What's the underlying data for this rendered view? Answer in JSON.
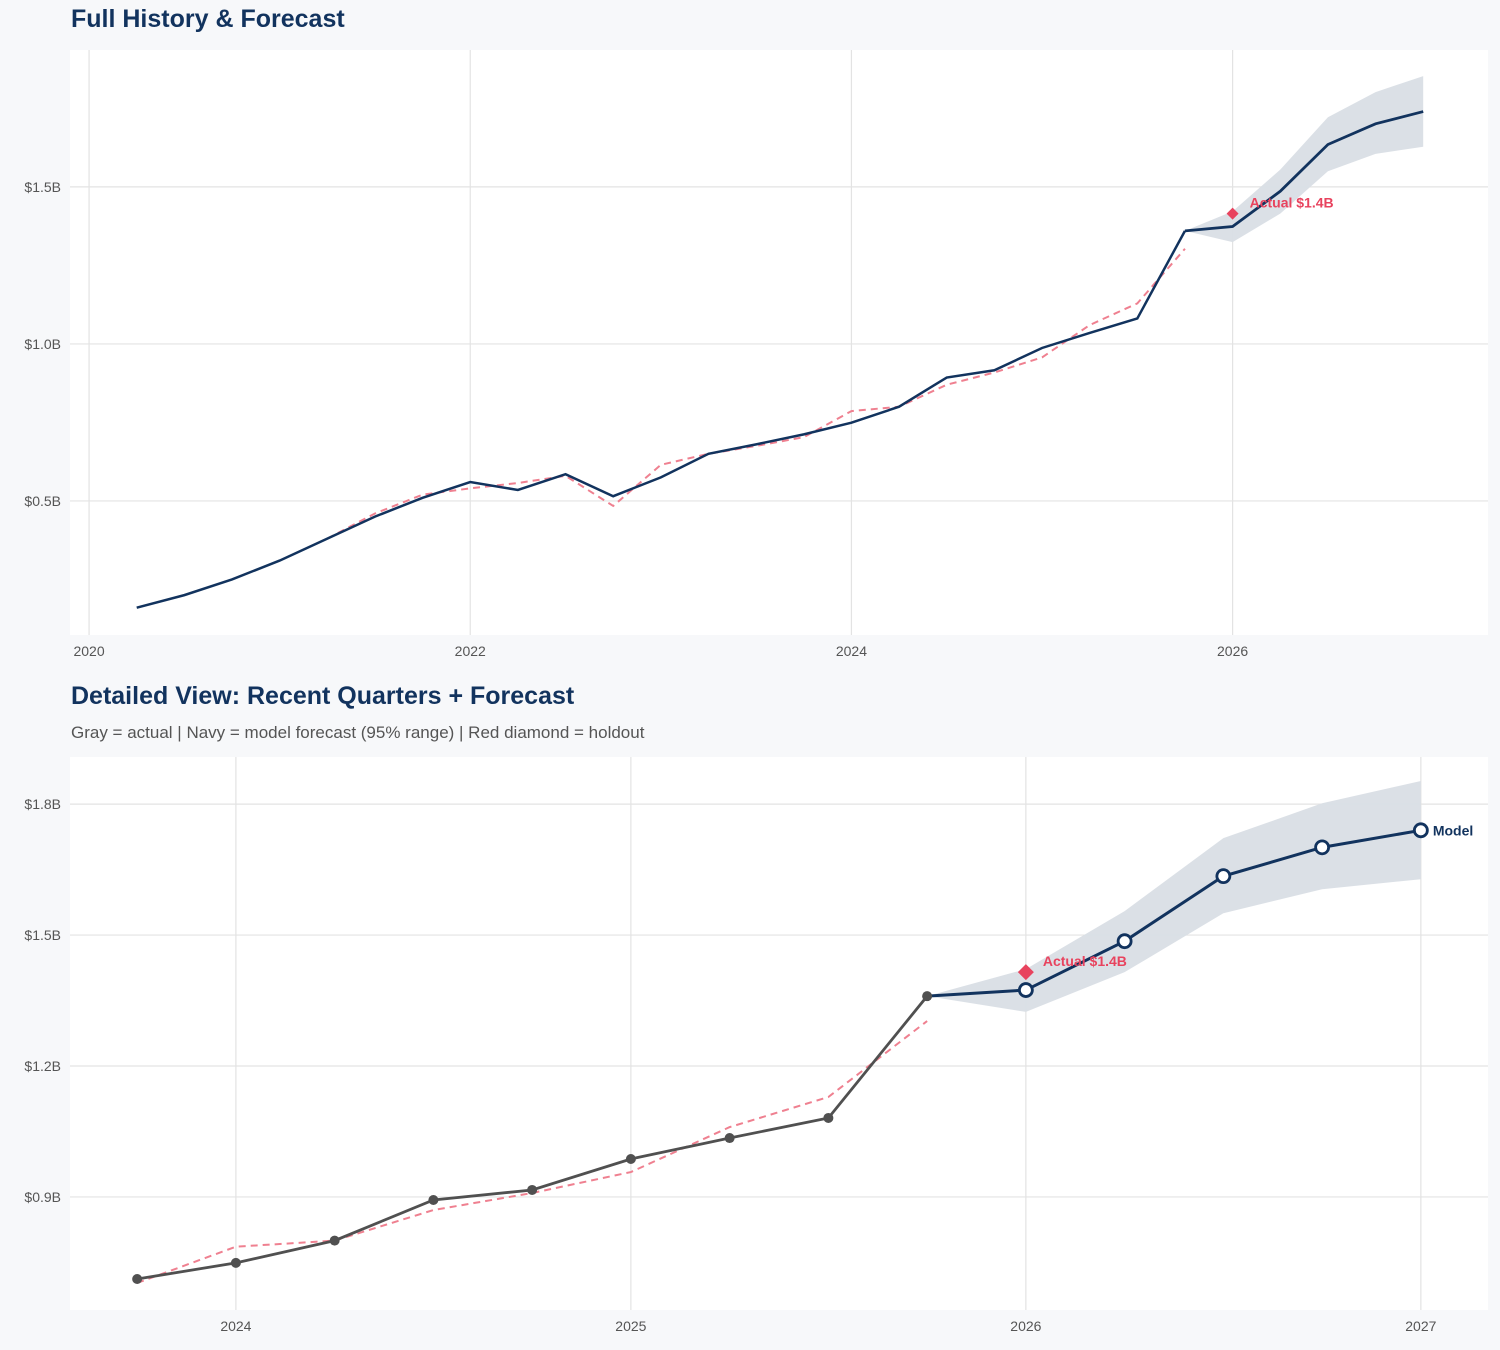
{
  "colors": {
    "navy": "#12335e",
    "gray": "#505050",
    "red": "#e8435e",
    "dashed": "#ef8090",
    "band": "#d9dee5",
    "grid": "#e3e3e3"
  },
  "chart_data": [
    {
      "type": "line",
      "title": "Full History & Forecast",
      "xlim": [
        2019.9,
        2027.34
      ],
      "ylim": [
        0.073,
        1.936
      ],
      "x_ticks": [
        2020,
        2022,
        2024,
        2026
      ],
      "x_tick_labels": [
        "2020",
        "2022",
        "2024",
        "2026"
      ],
      "y_ticks": [
        0.5,
        1.0,
        1.5
      ],
      "y_tick_labels": [
        "$0.5B",
        "$1.0B",
        "$1.5B"
      ],
      "grid": true,
      "actual": {
        "x": [
          2020.25,
          2020.5,
          2020.75,
          2021,
          2021.25,
          2021.5,
          2021.75,
          2022,
          2022.25,
          2022.5,
          2022.75,
          2023,
          2023.25,
          2023.5,
          2023.75,
          2024,
          2024.25,
          2024.5,
          2024.75,
          2025,
          2025.25,
          2025.5,
          2025.75
        ],
        "y": [
          0.16,
          0.2,
          0.25,
          0.31,
          0.38,
          0.45,
          0.51,
          0.56,
          0.535,
          0.585,
          0.515,
          0.575,
          0.65,
          0.68,
          0.712,
          0.749,
          0.8,
          0.893,
          0.916,
          0.987,
          1.035,
          1.081,
          1.36
        ]
      },
      "fitted": {
        "x": [
          2021.25,
          2021.5,
          2021.75,
          2022,
          2022.25,
          2022.5,
          2022.75,
          2023,
          2023.25,
          2023.5,
          2023.75,
          2024,
          2024.25,
          2024.5,
          2024.75,
          2025,
          2025.25,
          2025.5,
          2025.75
        ],
        "y": [
          0.38,
          0.46,
          0.52,
          0.54,
          0.557,
          0.58,
          0.484,
          0.615,
          0.65,
          0.675,
          0.703,
          0.786,
          0.8,
          0.87,
          0.909,
          0.957,
          1.06,
          1.129,
          1.303
        ]
      },
      "forecast": {
        "x": [
          2025.75,
          2026,
          2026.25,
          2026.5,
          2026.75,
          2027
        ],
        "y": [
          1.36,
          1.374,
          1.486,
          1.635,
          1.701,
          1.74
        ],
        "lower": [
          1.36,
          1.324,
          1.415,
          1.55,
          1.605,
          1.628
        ],
        "upper": [
          1.36,
          1.422,
          1.555,
          1.722,
          1.802,
          1.853
        ]
      },
      "holdout": {
        "x": 2026,
        "y": 1.415,
        "label": "Actual $1.4B"
      },
      "show_markers": false
    },
    {
      "type": "line",
      "title": "Detailed View: Recent Quarters + Forecast",
      "subtitle": "Gray = actual  |  Navy = model forecast (95% range)  |  Red diamond = holdout",
      "xlim": [
        2023.58,
        2027.17
      ],
      "ylim": [
        0.641,
        1.908
      ],
      "x_ticks": [
        2024,
        2025,
        2026,
        2027
      ],
      "x_tick_labels": [
        "2024",
        "2025",
        "2026",
        "2027"
      ],
      "y_ticks": [
        0.9,
        1.2,
        1.5,
        1.8
      ],
      "y_tick_labels": [
        "$0.9B",
        "$1.2B",
        "$1.5B",
        "$1.8B"
      ],
      "grid": true,
      "actual": {
        "x": [
          2023.75,
          2024,
          2024.25,
          2024.5,
          2024.75,
          2025,
          2025.25,
          2025.5,
          2025.75
        ],
        "y": [
          0.712,
          0.749,
          0.8,
          0.893,
          0.916,
          0.987,
          1.035,
          1.081,
          1.36
        ]
      },
      "fitted": {
        "x": [
          2023.75,
          2024,
          2024.25,
          2024.5,
          2024.75,
          2025,
          2025.25,
          2025.5,
          2025.75
        ],
        "y": [
          0.703,
          0.786,
          0.8,
          0.87,
          0.909,
          0.957,
          1.06,
          1.129,
          1.303
        ]
      },
      "forecast": {
        "x": [
          2025.75,
          2026,
          2026.25,
          2026.5,
          2026.75,
          2027
        ],
        "y": [
          1.36,
          1.374,
          1.486,
          1.635,
          1.701,
          1.74
        ],
        "lower": [
          1.36,
          1.324,
          1.415,
          1.55,
          1.605,
          1.628
        ],
        "upper": [
          1.36,
          1.422,
          1.555,
          1.722,
          1.802,
          1.853
        ]
      },
      "holdout": {
        "x": 2026,
        "y": 1.415,
        "label": "Actual $1.4B"
      },
      "end_label": "Model",
      "show_markers": true
    }
  ]
}
